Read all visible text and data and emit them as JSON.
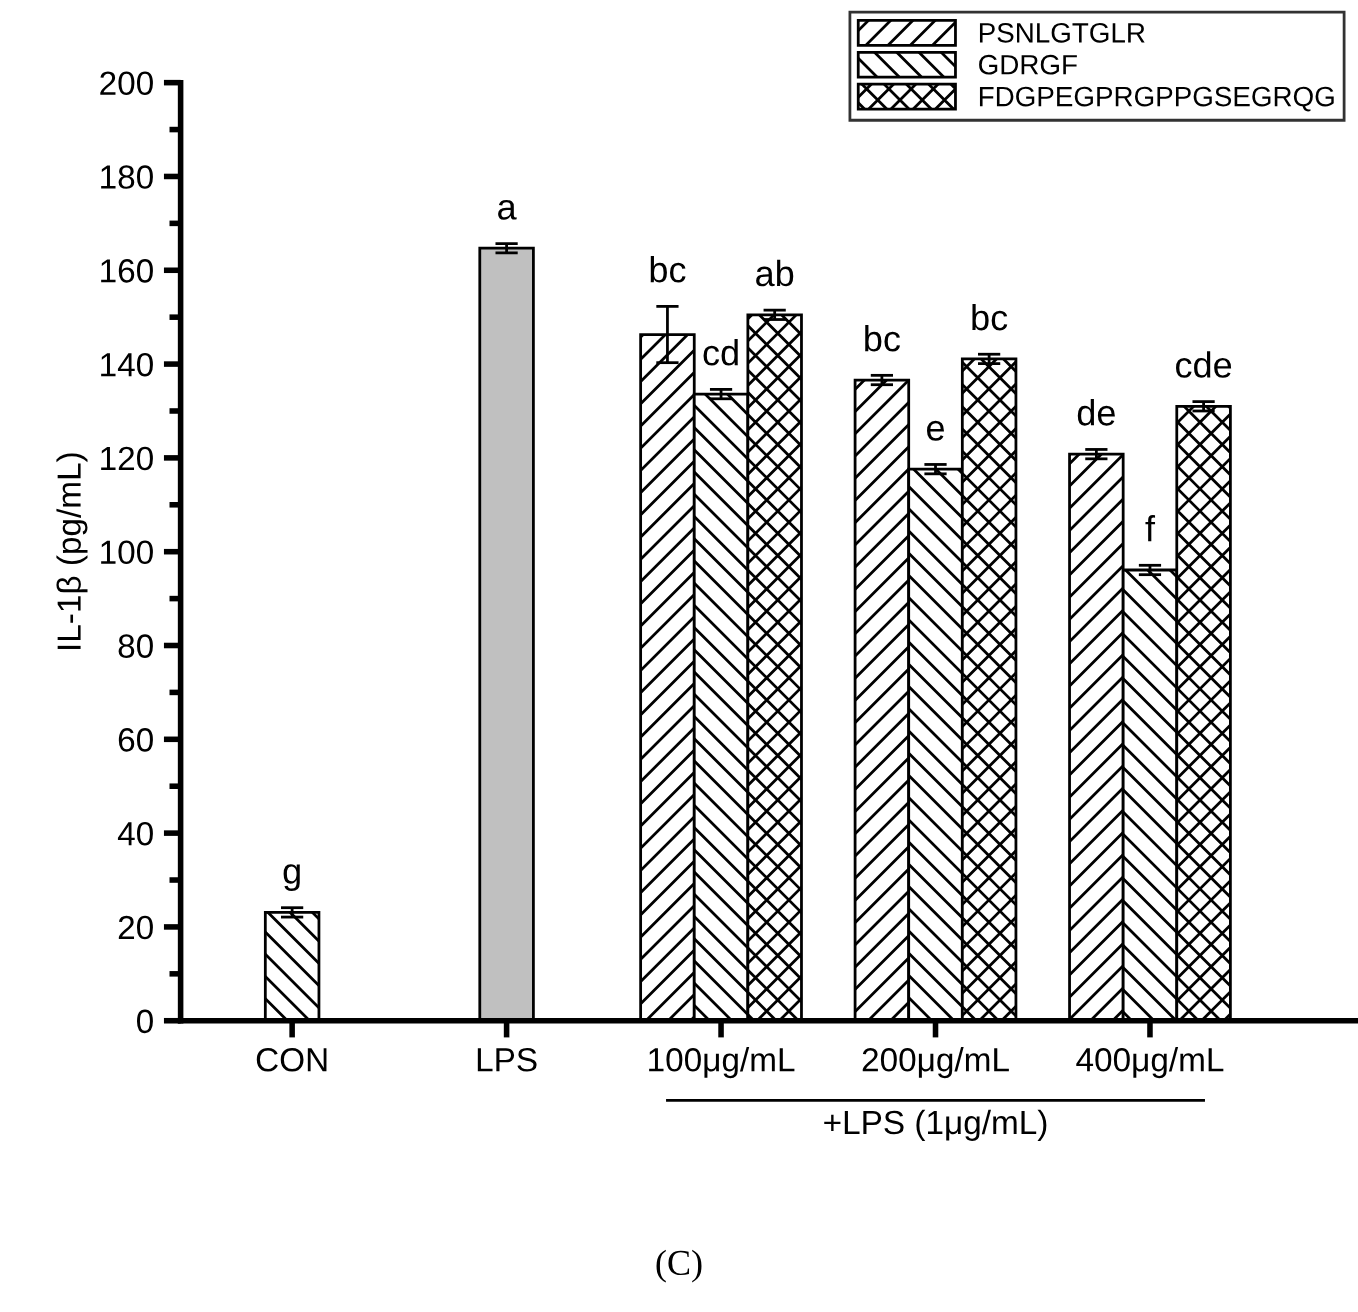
{
  "chart_data": {
    "type": "bar",
    "ylabel": "IL-1β (pg/mL)",
    "categories": [
      "CON",
      "LPS",
      "100μg/mL",
      "200μg/mL",
      "400μg/mL"
    ],
    "series": [
      {
        "name": "PSNLGTGLR",
        "color": "#000000",
        "values": [
          null,
          null,
          146.3,
          136.6,
          120.8
        ],
        "errors": [
          null,
          null,
          6,
          1,
          1
        ],
        "value_labels": [
          null,
          null,
          "bc",
          "bc",
          "de"
        ]
      },
      {
        "name": "GDRGF",
        "color": "#000000",
        "values": [
          23.1,
          null,
          133.6,
          117.6,
          96.1
        ],
        "errors": [
          1,
          null,
          1,
          1,
          1
        ],
        "value_labels": [
          "g",
          null,
          "cd",
          "e",
          "f"
        ]
      },
      {
        "color": "#c0c0c0",
        "values": [
          null,
          164.7,
          null,
          null,
          null
        ],
        "errors": [
          null,
          1,
          null,
          null,
          null
        ],
        "value_labels": [
          null,
          "a",
          null,
          null,
          null
        ]
      },
      {
        "name": "FDGPEGPRGPPGSEGRQG",
        "color": "#000000",
        "values": [
          null,
          null,
          150.5,
          141.1,
          131.0
        ],
        "errors": [
          null,
          null,
          1,
          1,
          1
        ],
        "value_labels": [
          null,
          null,
          "ab",
          "bc",
          "cde"
        ]
      }
    ],
    "ylim": [
      0,
      200
    ],
    "yticks": [
      0,
      20,
      40,
      60,
      80,
      100,
      120,
      140,
      160,
      180,
      200
    ],
    "grid": false,
    "legend": "top right",
    "annotations": [
      "+LPS (1μg/mL)",
      "(C)"
    ]
  }
}
